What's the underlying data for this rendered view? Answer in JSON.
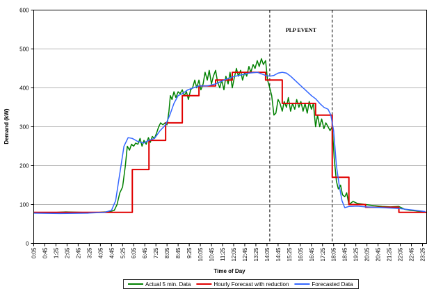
{
  "chart_data": {
    "type": "line",
    "y_label": "Demand (kW)",
    "x_label": "Time of Day",
    "ylim": [
      0,
      600
    ],
    "yticks": [
      0,
      100,
      200,
      300,
      400,
      500,
      600
    ],
    "xlim": [
      5,
      1420
    ],
    "xticks": [
      {
        "value": 5,
        "label": "0:05"
      },
      {
        "value": 45,
        "label": "0:45"
      },
      {
        "value": 85,
        "label": "1:25"
      },
      {
        "value": 125,
        "label": "2:05"
      },
      {
        "value": 165,
        "label": "2:45"
      },
      {
        "value": 205,
        "label": "3:25"
      },
      {
        "value": 245,
        "label": "4:05"
      },
      {
        "value": 285,
        "label": "4:45"
      },
      {
        "value": 325,
        "label": "5:25"
      },
      {
        "value": 365,
        "label": "6:05"
      },
      {
        "value": 405,
        "label": "6:45"
      },
      {
        "value": 445,
        "label": "7:25"
      },
      {
        "value": 485,
        "label": "8:05"
      },
      {
        "value": 525,
        "label": "8:45"
      },
      {
        "value": 565,
        "label": "9:25"
      },
      {
        "value": 605,
        "label": "10:05"
      },
      {
        "value": 645,
        "label": "10:45"
      },
      {
        "value": 685,
        "label": "11:25"
      },
      {
        "value": 725,
        "label": "12:05"
      },
      {
        "value": 765,
        "label": "12:45"
      },
      {
        "value": 805,
        "label": "13:25"
      },
      {
        "value": 845,
        "label": "14:05"
      },
      {
        "value": 885,
        "label": "14:45"
      },
      {
        "value": 925,
        "label": "15:25"
      },
      {
        "value": 965,
        "label": "16:05"
      },
      {
        "value": 1005,
        "label": "16:45"
      },
      {
        "value": 1045,
        "label": "17:25"
      },
      {
        "value": 1085,
        "label": "18:05"
      },
      {
        "value": 1125,
        "label": "18:45"
      },
      {
        "value": 1165,
        "label": "19:25"
      },
      {
        "value": 1205,
        "label": "20:05"
      },
      {
        "value": 1245,
        "label": "20:45"
      },
      {
        "value": 1285,
        "label": "21:25"
      },
      {
        "value": 1325,
        "label": "22:05"
      },
      {
        "value": 1365,
        "label": "22:45"
      },
      {
        "value": 1405,
        "label": "23:25"
      }
    ],
    "grid": true,
    "event": {
      "label": "PLP EVENT",
      "start": 855,
      "end": 1080
    },
    "series": [
      {
        "name": "Actual 5 min. Data",
        "color": "#008000",
        "step": false,
        "x": [
          5,
          60,
          120,
          180,
          240,
          280,
          295,
          305,
          315,
          325,
          335,
          342,
          350,
          357,
          365,
          372,
          380,
          388,
          395,
          402,
          410,
          418,
          425,
          432,
          440,
          448,
          455,
          462,
          470,
          478,
          485,
          492,
          497,
          503,
          510,
          517,
          525,
          532,
          540,
          547,
          555,
          562,
          570,
          577,
          585,
          592,
          600,
          607,
          615,
          622,
          630,
          637,
          645,
          652,
          660,
          667,
          675,
          682,
          690,
          697,
          705,
          712,
          720,
          727,
          735,
          742,
          750,
          757,
          765,
          772,
          780,
          787,
          795,
          802,
          810,
          817,
          825,
          832,
          840,
          847,
          855,
          862,
          870,
          877,
          885,
          892,
          900,
          907,
          915,
          922,
          930,
          937,
          945,
          952,
          960,
          967,
          975,
          982,
          990,
          997,
          1005,
          1012,
          1020,
          1027,
          1035,
          1042,
          1050,
          1057,
          1065,
          1072,
          1080,
          1087,
          1095,
          1102,
          1110,
          1117,
          1125,
          1132,
          1140,
          1155,
          1170,
          1200,
          1230,
          1260,
          1290,
          1320,
          1340,
          1360,
          1380,
          1400,
          1415
        ],
        "values": [
          80,
          79,
          81,
          80,
          80,
          82,
          85,
          100,
          130,
          145,
          200,
          250,
          240,
          255,
          250,
          258,
          255,
          270,
          250,
          265,
          255,
          272,
          260,
          275,
          270,
          285,
          300,
          310,
          305,
          310,
          305,
          340,
          380,
          370,
          390,
          375,
          390,
          385,
          395,
          380,
          390,
          370,
          395,
          400,
          420,
          400,
          420,
          395,
          410,
          440,
          420,
          445,
          410,
          430,
          445,
          415,
          400,
          420,
          395,
          430,
          410,
          440,
          400,
          425,
          450,
          430,
          445,
          420,
          440,
          430,
          455,
          440,
          460,
          450,
          470,
          455,
          475,
          460,
          470,
          420,
          400,
          380,
          330,
          335,
          370,
          360,
          340,
          365,
          350,
          375,
          340,
          360,
          345,
          370,
          350,
          365,
          340,
          360,
          335,
          365,
          345,
          360,
          300,
          330,
          300,
          320,
          295,
          310,
          300,
          290,
          300,
          220,
          160,
          140,
          150,
          125,
          120,
          130,
          100,
          108,
          103,
          100,
          97,
          95,
          94,
          95,
          88,
          85,
          84,
          82,
          80
        ]
      },
      {
        "name": "Hourly Forecast with reduction",
        "color": "#e00000",
        "step": true,
        "x": [
          5,
          360,
          420,
          480,
          540,
          600,
          660,
          720,
          780,
          840,
          900,
          1020,
          1080,
          1140,
          1200,
          1320
        ],
        "values": [
          80,
          190,
          265,
          310,
          380,
          405,
          420,
          440,
          440,
          420,
          360,
          330,
          170,
          100,
          93,
          80
        ]
      },
      {
        "name": "Forecasted Data",
        "color": "#3366ff",
        "step": false,
        "x": [
          5,
          100,
          200,
          260,
          285,
          300,
          315,
          330,
          345,
          360,
          380,
          400,
          420,
          440,
          460,
          480,
          495,
          510,
          525,
          540,
          560,
          580,
          600,
          630,
          660,
          690,
          720,
          750,
          780,
          810,
          840,
          855,
          870,
          885,
          900,
          915,
          930,
          945,
          960,
          975,
          990,
          1005,
          1020,
          1035,
          1050,
          1065,
          1075,
          1085,
          1095,
          1105,
          1115,
          1125,
          1140,
          1170,
          1200,
          1260,
          1320,
          1380,
          1415
        ],
        "values": [
          78,
          77,
          78,
          80,
          85,
          110,
          180,
          250,
          272,
          270,
          262,
          258,
          265,
          270,
          290,
          305,
          330,
          360,
          380,
          385,
          395,
          400,
          405,
          405,
          410,
          420,
          428,
          433,
          438,
          440,
          432,
          430,
          432,
          438,
          440,
          438,
          430,
          420,
          410,
          400,
          390,
          380,
          372,
          360,
          350,
          345,
          330,
          290,
          200,
          150,
          110,
          92,
          95,
          96,
          94,
          92,
          90,
          85,
          82
        ]
      }
    ]
  }
}
